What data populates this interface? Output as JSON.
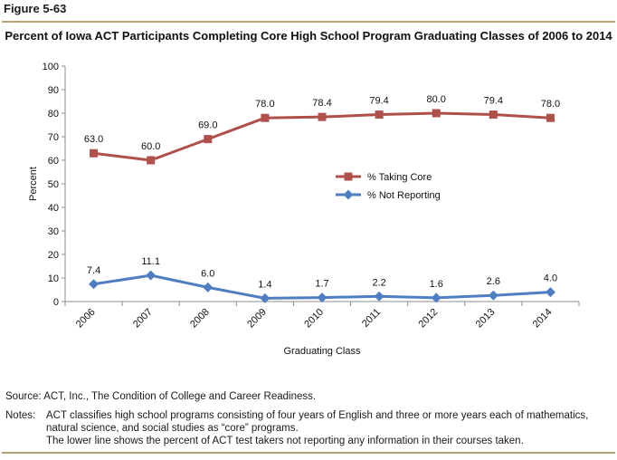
{
  "figure_label": "Figure 5-63",
  "source": "Source:  ACT, Inc., The Condition of College and Career Readiness.",
  "notes": {
    "label": "Notes:",
    "lines": [
      "ACT classifies high school programs consisting of four years of English and three or more years each of mathematics,",
      "natural science, and social studies as “core” programs.",
      "The lower line shows the percent of ACT test takers not reporting any information in their courses taken."
    ]
  },
  "colors": {
    "rule": "#b5a277",
    "core_series": "#b0504b",
    "not_reporting_series": "#4f7ec2",
    "axis": "#8c8c8c"
  },
  "chart_data": {
    "type": "line",
    "title": "Percent of Iowa ACT Participants Completing Core High School Program Graduating Classes of 2006 to 2014",
    "xlabel": "Graduating Class",
    "ylabel": "Percent",
    "ylim": [
      0,
      100
    ],
    "yticks": [
      0,
      10,
      20,
      30,
      40,
      50,
      60,
      70,
      80,
      90,
      100
    ],
    "grid": false,
    "legend_position": "center-right",
    "categories": [
      "2006",
      "2007",
      "2008",
      "2009",
      "2010",
      "2011",
      "2012",
      "2013",
      "2014"
    ],
    "series": [
      {
        "name": "% Taking Core",
        "marker": "square",
        "color": "#b0504b",
        "values": [
          63.0,
          60.0,
          69.0,
          78.0,
          78.4,
          79.4,
          80.0,
          79.4,
          78.0
        ],
        "labels": [
          "63.0",
          "60.0",
          "69.0",
          "78.0",
          "78.4",
          "79.4",
          "80.0",
          "79.4",
          "78.0"
        ]
      },
      {
        "name": "% Not Reporting",
        "marker": "diamond",
        "color": "#4f7ec2",
        "values": [
          7.4,
          11.1,
          6.0,
          1.4,
          1.7,
          2.2,
          1.6,
          2.6,
          4.0
        ],
        "labels": [
          "7.4",
          "11.1",
          "6.0",
          "1.4",
          "1.7",
          "2.2",
          "1.6",
          "2.6",
          "4.0"
        ]
      }
    ]
  }
}
